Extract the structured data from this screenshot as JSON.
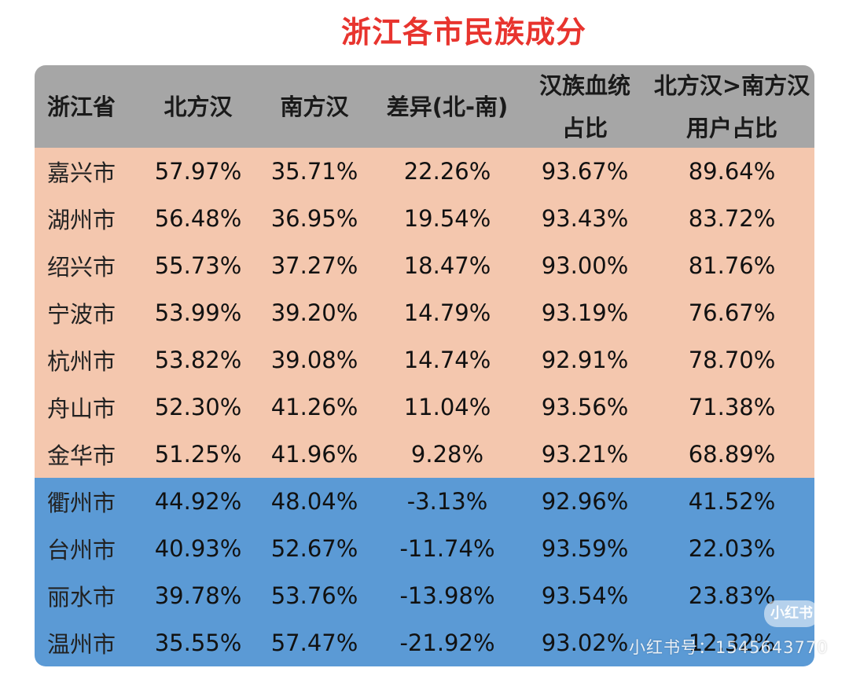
{
  "title": "浙江各市民族成分",
  "header": {
    "col0": "浙江省",
    "col1": "北方汉",
    "col2": "南方汉",
    "col3": "差异(北-南)",
    "col4_line1": "汉族血统",
    "col4_line2": "占比",
    "col5_line1": "北方汉>南方汉",
    "col5_line2": "用户占比"
  },
  "rows": [
    {
      "city": "嘉兴市",
      "north": "57.97%",
      "south": "35.71%",
      "diff": "22.26%",
      "han": "93.67%",
      "users": "89.64%"
    },
    {
      "city": "湖州市",
      "north": "56.48%",
      "south": "36.95%",
      "diff": "19.54%",
      "han": "93.43%",
      "users": "83.72%"
    },
    {
      "city": "绍兴市",
      "north": "55.73%",
      "south": "37.27%",
      "diff": "18.47%",
      "han": "93.00%",
      "users": "81.76%"
    },
    {
      "city": "宁波市",
      "north": "53.99%",
      "south": "39.20%",
      "diff": "14.79%",
      "han": "93.19%",
      "users": "76.67%"
    },
    {
      "city": "杭州市",
      "north": "53.82%",
      "south": "39.08%",
      "diff": "14.74%",
      "han": "92.91%",
      "users": "78.70%"
    },
    {
      "city": "舟山市",
      "north": "52.30%",
      "south": "41.26%",
      "diff": "11.04%",
      "han": "93.56%",
      "users": "71.38%"
    },
    {
      "city": "金华市",
      "north": "51.25%",
      "south": "41.96%",
      "diff": "9.28%",
      "han": "93.21%",
      "users": "68.89%"
    },
    {
      "city": "衢州市",
      "north": "44.92%",
      "south": "48.04%",
      "diff": "-3.13%",
      "han": "92.96%",
      "users": "41.52%"
    },
    {
      "city": "台州市",
      "north": "40.93%",
      "south": "52.67%",
      "diff": "-11.74%",
      "han": "93.59%",
      "users": "22.03%"
    },
    {
      "city": "丽水市",
      "north": "39.78%",
      "south": "53.76%",
      "diff": "-13.98%",
      "han": "93.54%",
      "users": "23.83%"
    },
    {
      "city": "温州市",
      "north": "35.55%",
      "south": "57.47%",
      "diff": "-21.92%",
      "han": "93.02%",
      "users": "12.32%"
    }
  ],
  "watermark": {
    "logo": "小红书",
    "text": "小红书号：1545643770"
  },
  "colors": {
    "title": "#e8342e",
    "header_bg": "#a6a6a6",
    "north_row_bg": "#f4c7ae",
    "south_row_bg": "#5b9ad5"
  }
}
